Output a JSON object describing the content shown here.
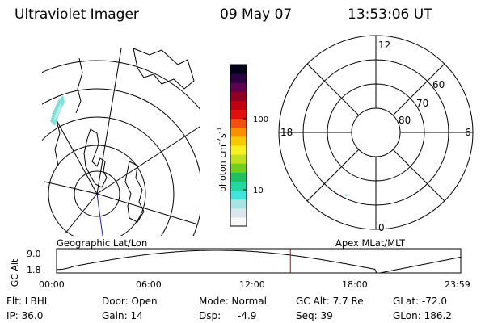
{
  "header": {
    "instrument": "Ultraviolet Imager",
    "date": "09 May 07",
    "time": "13:53:06 UT"
  },
  "geo_panel": {
    "caption": "Geographic Lat/Lon"
  },
  "polar_panel": {
    "caption": "Apex MLat/MLT",
    "mlt_labels": {
      "top": "12",
      "left": "18",
      "right": "6",
      "bottom": "0"
    },
    "lat_labels": [
      "60",
      "70",
      "80"
    ]
  },
  "colorbar": {
    "units_label": "photon cm",
    "units_sup": "-2",
    "units_s": "s",
    "units_sup2": "-1",
    "ticks": [
      "100",
      "10"
    ],
    "colors": [
      "#f8f8f8",
      "#d8e8ec",
      "#a8e4e4",
      "#40e4d8",
      "#20d8a0",
      "#20c060",
      "#70d020",
      "#c0e020",
      "#f8f020",
      "#f8c800",
      "#f89000",
      "#f05010",
      "#e01010",
      "#c00010",
      "#900020",
      "#600050",
      "#2a0040",
      "#000018"
    ]
  },
  "altitude_strip": {
    "ylabel": "GC Alt",
    "ymax_label": "9.0",
    "ymin_label": "1.8",
    "xticks": [
      "00:00",
      "06:00",
      "12:00",
      "18:00",
      "23:59"
    ],
    "current_time_hours": 13.885,
    "marker_color": "#dd0000"
  },
  "status": {
    "filter": "Flt: LBHL",
    "door": "Door: Open",
    "mode": "Mode: Normal",
    "gc_alt": "GC Alt: 7.7 Re",
    "glat": "GLat: -72.0",
    "ip": "IP: 36.0",
    "gain": "Gain: 14",
    "dsp_label": "Dsp:",
    "dsp_value": "-4.9",
    "seq": "Seq: 39",
    "glon": "GLon: 186.2"
  }
}
